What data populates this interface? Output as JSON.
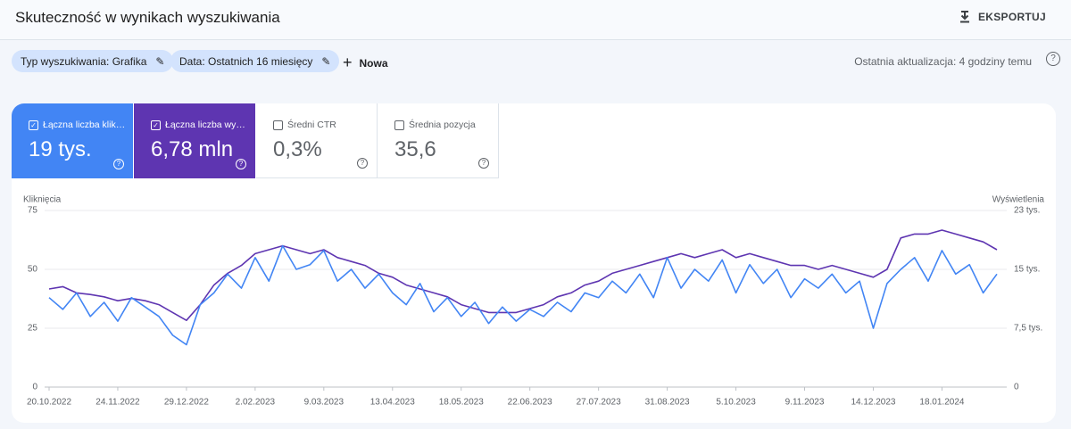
{
  "header": {
    "title": "Skuteczność w wynikach wyszukiwania",
    "export": "EKSPORTUJ"
  },
  "filters": {
    "chips": [
      "Typ wyszukiwania: Grafika",
      "Data: Ostatnich 16 miesięcy"
    ],
    "new": "Nowa",
    "updated": "Ostatnia aktualizacja: 4 godziny temu"
  },
  "cards": [
    {
      "label": "Łączna liczba klik…",
      "value": "19 tys."
    },
    {
      "label": "Łączna liczba wy…",
      "value": "6,78 mln"
    },
    {
      "label": "Średni CTR",
      "value": "0,3%"
    },
    {
      "label": "Średnia pozycja",
      "value": "35,6"
    }
  ],
  "chart_data": {
    "type": "line",
    "ylabel": "Kliknięcia",
    "y2label": "Wyświetlenia",
    "grid": true,
    "x": [
      "20.10.2022",
      "27.10.2022",
      "3.11.2022",
      "10.11.2022",
      "17.11.2022",
      "24.11.2022",
      "1.12.2022",
      "8.12.2022",
      "15.12.2022",
      "22.12.2022",
      "29.12.2022",
      "5.01.2023",
      "12.01.2023",
      "19.01.2023",
      "26.01.2023",
      "2.02.2023",
      "9.02.2023",
      "16.02.2023",
      "23.02.2023",
      "2.03.2023",
      "9.03.2023",
      "16.03.2023",
      "23.03.2023",
      "30.03.2023",
      "6.04.2023",
      "13.04.2023",
      "20.04.2023",
      "27.04.2023",
      "4.05.2023",
      "11.05.2023",
      "18.05.2023",
      "25.05.2023",
      "1.06.2023",
      "8.06.2023",
      "15.06.2023",
      "22.06.2023",
      "29.06.2023",
      "6.07.2023",
      "13.07.2023",
      "20.07.2023",
      "27.07.2023",
      "3.08.2023",
      "10.08.2023",
      "17.08.2023",
      "24.08.2023",
      "31.08.2023",
      "7.09.2023",
      "14.09.2023",
      "21.09.2023",
      "28.09.2023",
      "5.10.2023",
      "12.10.2023",
      "19.10.2023",
      "26.10.2023",
      "2.11.2023",
      "9.11.2023",
      "16.11.2023",
      "23.11.2023",
      "30.11.2023",
      "7.12.2023",
      "14.12.2023",
      "21.12.2023",
      "28.12.2023",
      "4.01.2024",
      "11.01.2024",
      "18.01.2024",
      "25.01.2024",
      "1.02.2024",
      "8.02.2024",
      "15.02.2024"
    ],
    "xticks": [
      "20.10.2022",
      "24.11.2022",
      "29.12.2022",
      "2.02.2023",
      "9.03.2023",
      "13.04.2023",
      "18.05.2023",
      "22.06.2023",
      "27.07.2023",
      "31.08.2023",
      "5.10.2023",
      "9.11.2023",
      "14.12.2023",
      "18.01.2024"
    ],
    "ylim": [
      0,
      75
    ],
    "yticks": [
      0,
      25,
      50,
      75
    ],
    "y2lim": [
      0,
      22500
    ],
    "y2ticks": [
      0,
      {
        "value": 7500,
        "label": "7,5 tys."
      },
      {
        "value": 15000,
        "label": "15 tys."
      },
      {
        "value": 22500,
        "label": "23 tys."
      }
    ],
    "series": [
      {
        "color": "#4285f4",
        "values": [
          38,
          33,
          40,
          30,
          36,
          28,
          38,
          34,
          30,
          22,
          18,
          35,
          40,
          48,
          42,
          55,
          45,
          60,
          50,
          52,
          58,
          45,
          50,
          42,
          48,
          40,
          35,
          44,
          32,
          38,
          30,
          36,
          27,
          34,
          28,
          33,
          30,
          36,
          32,
          40,
          38,
          45,
          40,
          48,
          38,
          55,
          42,
          50,
          45,
          54,
          40,
          52,
          44,
          50,
          38,
          46,
          42,
          48,
          40,
          45,
          25,
          44,
          50,
          55,
          45,
          58,
          48,
          52,
          40,
          48
        ]
      },
      {
        "color": "#5e35b1",
        "axis": "y2",
        "values": [
          12500,
          12800,
          12000,
          11800,
          11500,
          11000,
          11300,
          11000,
          10500,
          9500,
          8500,
          10500,
          13000,
          14500,
          15500,
          17000,
          17500,
          18000,
          17500,
          17000,
          17500,
          16500,
          16000,
          15500,
          14500,
          14000,
          13000,
          12500,
          12000,
          11500,
          10500,
          10000,
          9500,
          9500,
          9500,
          10000,
          10500,
          11500,
          12000,
          13000,
          13500,
          14500,
          15000,
          15500,
          16000,
          16500,
          17000,
          16500,
          17000,
          17500,
          16500,
          17000,
          16500,
          16000,
          15500,
          15500,
          15000,
          15500,
          15000,
          14500,
          14000,
          15000,
          19000,
          19500,
          19500,
          20000,
          19500,
          19000,
          18500,
          17500
        ]
      }
    ]
  }
}
